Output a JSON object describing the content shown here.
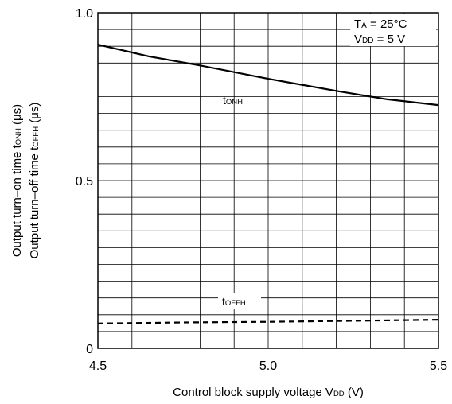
{
  "chart_data": {
    "type": "line",
    "xlim": [
      4.5,
      5.5
    ],
    "ylim": [
      0,
      1.0
    ],
    "grid": true,
    "x_ticks": [
      "4.5",
      "5.0",
      "5.5"
    ],
    "y_ticks": [
      "0",
      "0.5",
      "1.0"
    ],
    "xlabel": {
      "main": "Control block supply voltage V",
      "sub": "DD",
      "tail": " (V)"
    },
    "ylabel": {
      "line1": {
        "main": "Output turn–on time t",
        "sub": "ONH",
        "tail": " (μs)"
      },
      "line2": {
        "main": "Output turn–off time t",
        "sub": "OFFH",
        "tail": " (μs)"
      }
    },
    "conditions": [
      {
        "main": "T",
        "sub": "A",
        "tail": " = 25°C"
      },
      {
        "main": "V",
        "sub": "DD",
        "tail": " = 5 V"
      }
    ],
    "series": [
      {
        "label": {
          "main": "t",
          "sub": "ONH"
        },
        "style": "solid",
        "color": "#000000",
        "x": [
          4.5,
          4.65,
          4.8,
          5.0,
          5.2,
          5.35,
          5.5
        ],
        "y": [
          0.905,
          0.87,
          0.843,
          0.803,
          0.767,
          0.742,
          0.725
        ]
      },
      {
        "label": {
          "main": "t",
          "sub": "OFFH"
        },
        "style": "dashed",
        "color": "#000000",
        "x": [
          4.5,
          4.75,
          5.0,
          5.25,
          5.5
        ],
        "y": [
          0.074,
          0.077,
          0.079,
          0.082,
          0.085
        ]
      }
    ]
  }
}
